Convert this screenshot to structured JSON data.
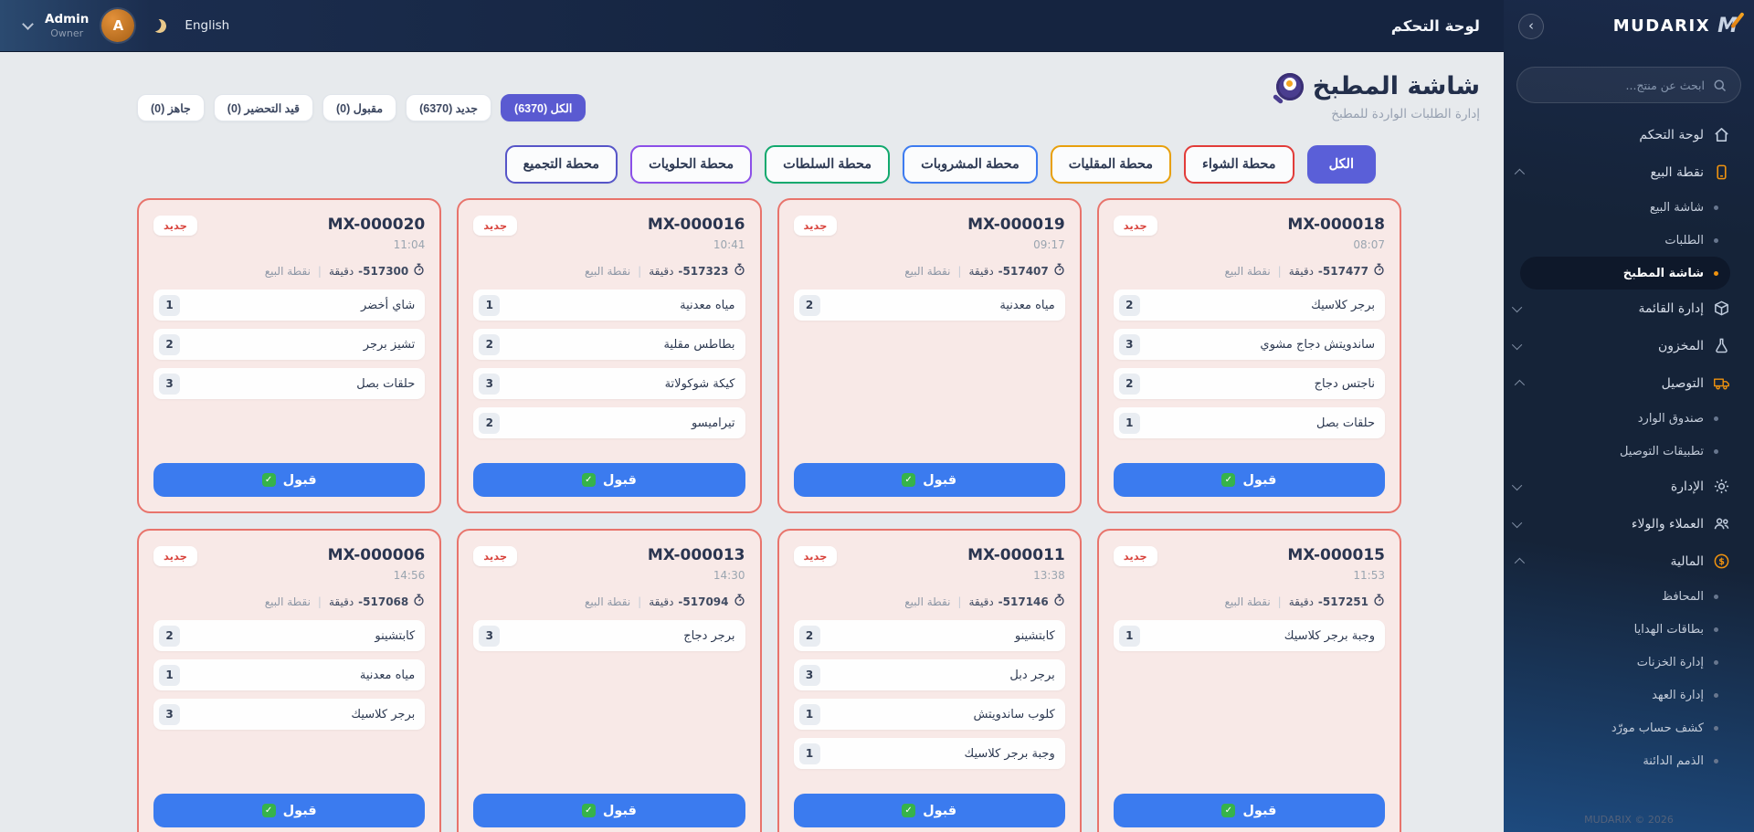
{
  "topbar": {
    "title": "لوحة التحكم",
    "user_name": "Admin",
    "user_role": "Owner",
    "avatar_initial": "A",
    "language_label": "English"
  },
  "sidebar": {
    "brand": "MUDARIX",
    "brand_mark": "M",
    "search_placeholder": "ابحث عن منتج...",
    "footer": "MUDARIX © 2026",
    "items": [
      {
        "label": "لوحة التحكم",
        "icon": "home-icon",
        "type": "parent"
      },
      {
        "label": "نقطة البيع",
        "icon": "pos-icon",
        "type": "parent",
        "accent": true,
        "expanded": true
      },
      {
        "label": "شاشة البيع",
        "type": "sub"
      },
      {
        "label": "الطلبات",
        "type": "sub"
      },
      {
        "label": "شاشة المطبخ",
        "type": "sub",
        "active": true
      },
      {
        "label": "إدارة القائمة",
        "icon": "package-icon",
        "type": "parent",
        "expanded": false
      },
      {
        "label": "المخزون",
        "icon": "flask-icon",
        "type": "parent",
        "expanded": false
      },
      {
        "label": "التوصيل",
        "icon": "truck-icon",
        "type": "parent",
        "accent": true,
        "expanded": true
      },
      {
        "label": "صندوق الوارد",
        "type": "sub"
      },
      {
        "label": "تطبيقات التوصيل",
        "type": "sub"
      },
      {
        "label": "الإدارة",
        "icon": "gear-icon",
        "type": "parent",
        "expanded": false
      },
      {
        "label": "العملاء والولاء",
        "icon": "customers-icon",
        "type": "parent",
        "expanded": false
      },
      {
        "label": "المالية",
        "icon": "finance-icon",
        "type": "parent",
        "accent": true,
        "expanded": true
      },
      {
        "label": "المحافظ",
        "type": "sub"
      },
      {
        "label": "بطاقات الهدايا",
        "type": "sub"
      },
      {
        "label": "إدارة الخزنات",
        "type": "sub"
      },
      {
        "label": "إدارة العهد",
        "type": "sub"
      },
      {
        "label": "كشف حساب مورّد",
        "type": "sub"
      },
      {
        "label": "الذمم الدائنة",
        "type": "sub"
      }
    ]
  },
  "page": {
    "title": "شاشة المطبخ",
    "subtitle": "إدارة الطلبات الواردة للمطبخ"
  },
  "status_filters": [
    {
      "label": "الكل (6370)",
      "active": true
    },
    {
      "label": "جديد (6370)",
      "active": false
    },
    {
      "label": "مقبول (0)",
      "active": false
    },
    {
      "label": "قيد التحضير (0)",
      "active": false
    },
    {
      "label": "جاهز (0)",
      "active": false
    }
  ],
  "station_tabs": [
    {
      "label": "الكل",
      "color": "#5a5fd8",
      "active": true
    },
    {
      "label": "محطة الشواء",
      "color": "#e23c39",
      "active": false
    },
    {
      "label": "محطة المقليات",
      "color": "#e8a00c",
      "active": false
    },
    {
      "label": "محطة المشروبات",
      "color": "#3d7bf0",
      "active": false
    },
    {
      "label": "محطة السلطات",
      "color": "#12a96e",
      "active": false
    },
    {
      "label": "محطة الحلويات",
      "color": "#8b4fe8",
      "active": false
    },
    {
      "label": "محطة التجميع",
      "color": "#5655c8",
      "active": false
    }
  ],
  "orders": {
    "badge_new": "جديد",
    "minutes_unit": "دقيقة",
    "source": "نقطة البيع",
    "accept_label": "قبول",
    "cards": [
      {
        "number": "MX-000018",
        "time": "08:07",
        "elapsed": "-517477",
        "items": [
          {
            "name": "برجر كلاسيك",
            "qty": "2"
          },
          {
            "name": "ساندويتش دجاج مشوي",
            "qty": "3"
          },
          {
            "name": "ناجتس دجاج",
            "qty": "2"
          },
          {
            "name": "حلقات بصل",
            "qty": "1"
          }
        ]
      },
      {
        "number": "MX-000019",
        "time": "09:17",
        "elapsed": "-517407",
        "items": [
          {
            "name": "مياه معدنية",
            "qty": "2"
          }
        ]
      },
      {
        "number": "MX-000016",
        "time": "10:41",
        "elapsed": "-517323",
        "items": [
          {
            "name": "مياه معدنية",
            "qty": "1"
          },
          {
            "name": "بطاطس مقلية",
            "qty": "2"
          },
          {
            "name": "كيكة شوكولاتة",
            "qty": "3"
          },
          {
            "name": "تيراميسو",
            "qty": "2"
          }
        ]
      },
      {
        "number": "MX-000020",
        "time": "11:04",
        "elapsed": "-517300",
        "items": [
          {
            "name": "شاي أخضر",
            "qty": "1"
          },
          {
            "name": "تشيز برجر",
            "qty": "2"
          },
          {
            "name": "حلقات بصل",
            "qty": "3"
          }
        ]
      },
      {
        "number": "MX-000015",
        "time": "11:53",
        "elapsed": "-517251",
        "items": [
          {
            "name": "وجبة برجر كلاسيك",
            "qty": "1"
          }
        ]
      },
      {
        "number": "MX-000011",
        "time": "13:38",
        "elapsed": "-517146",
        "items": [
          {
            "name": "كابتشينو",
            "qty": "2"
          },
          {
            "name": "برجر دبل",
            "qty": "3"
          },
          {
            "name": "كلوب ساندويتش",
            "qty": "1"
          },
          {
            "name": "وجبة برجر كلاسيك",
            "qty": "1"
          }
        ]
      },
      {
        "number": "MX-000013",
        "time": "14:30",
        "elapsed": "-517094",
        "items": [
          {
            "name": "برجر دجاج",
            "qty": "3"
          }
        ]
      },
      {
        "number": "MX-000006",
        "time": "14:56",
        "elapsed": "-517068",
        "items": [
          {
            "name": "كابتشينو",
            "qty": "2"
          },
          {
            "name": "مياه معدنية",
            "qty": "1"
          },
          {
            "name": "برجر كلاسيك",
            "qty": "3"
          }
        ]
      }
    ]
  },
  "colors": {
    "accent_orange": "#f0930f",
    "active_purple": "#5a5ad1",
    "card_border_red": "#e8746c",
    "accept_blue": "#3b7bef",
    "check_green": "#36b34a"
  }
}
